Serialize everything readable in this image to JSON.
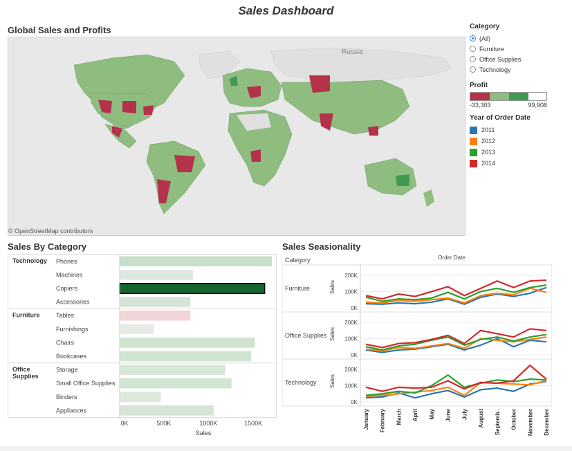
{
  "dashboard": {
    "title": "Sales Dashboard"
  },
  "map": {
    "title": "Global Sales and Profits",
    "label_russia": "Russia",
    "attribution": "© OpenStreetMap contributors"
  },
  "legend": {
    "category": {
      "header": "Category",
      "options": [
        "(All)",
        "Furniture",
        "Office Supplies",
        "Technology"
      ],
      "selected": "(All)"
    },
    "profit": {
      "header": "Profit",
      "min_label": "-33,303",
      "max_label": "99,908",
      "colors": [
        "#b5324b",
        "#8fbd80",
        "#3f9a53",
        "#ffffff"
      ]
    },
    "year": {
      "header": "Year of Order Date",
      "items": [
        {
          "label": "2011",
          "color": "#2a77b4"
        },
        {
          "label": "2012",
          "color": "#ff7f0e"
        },
        {
          "label": "2013",
          "color": "#2ca02c"
        },
        {
          "label": "2014",
          "color": "#d62728"
        }
      ]
    }
  },
  "sales_by_category": {
    "title": "Sales By Category",
    "chart_data": {
      "type": "bar",
      "xlabel": "Sales",
      "xlim": [
        0,
        1700000
      ],
      "xticks": [
        "0K",
        "500K",
        "1000K",
        "1500K"
      ],
      "groups": [
        {
          "name": "Technology",
          "items": [
            {
              "label": "Phones",
              "value": 1700000,
              "color": "#c7dfc9"
            },
            {
              "label": "Machines",
              "value": 820000,
              "color": "#dfe8de"
            },
            {
              "label": "Copiers",
              "value": 1620000,
              "color": "#14652f",
              "highlight": true
            },
            {
              "label": "Accessories",
              "value": 790000,
              "color": "#d5e4d6"
            }
          ]
        },
        {
          "name": "Furniture",
          "items": [
            {
              "label": "Tables",
              "value": 790000,
              "color": "#f1d5d7"
            },
            {
              "label": "Furnishings",
              "value": 380000,
              "color": "#e6ece5"
            },
            {
              "label": "Chairs",
              "value": 1510000,
              "color": "#cfe3d1"
            },
            {
              "label": "Bookcases",
              "value": 1470000,
              "color": "#cfe3d1"
            }
          ]
        },
        {
          "name": "Office Supplies",
          "items": [
            {
              "label": "Storage",
              "value": 1180000,
              "color": "#d6e6d7"
            },
            {
              "label": "Small Office Supplies",
              "value": 1250000,
              "color": "#d2e4d3"
            },
            {
              "label": "Binders",
              "value": 460000,
              "color": "#dde9dd"
            },
            {
              "label": "Appliances",
              "value": 1050000,
              "color": "#d4e5d5"
            }
          ]
        }
      ]
    }
  },
  "seasonality": {
    "title": "Sales Seasionality",
    "chart_data": {
      "type": "line",
      "col_header": "Category",
      "top_label": "Order Date",
      "ylabel": "Sales",
      "ylim": [
        0,
        200000
      ],
      "yticks": [
        "0K",
        "100K",
        "200K"
      ],
      "months": [
        "January",
        "February",
        "March",
        "April",
        "May",
        "June",
        "July",
        "August",
        "Septemb..",
        "October",
        "November",
        "December"
      ],
      "panels": [
        {
          "category": "Furniture",
          "series": [
            {
              "name": "2011",
              "values": [
                25000,
                22000,
                30000,
                25000,
                35000,
                55000,
                22000,
                65000,
                85000,
                70000,
                90000,
                125000
              ]
            },
            {
              "name": "2012",
              "values": [
                35000,
                30000,
                45000,
                40000,
                50000,
                60000,
                30000,
                75000,
                90000,
                80000,
                120000,
                95000
              ]
            },
            {
              "name": "2013",
              "values": [
                65000,
                40000,
                55000,
                50000,
                60000,
                95000,
                55000,
                100000,
                120000,
                95000,
                125000,
                140000
              ]
            },
            {
              "name": "2014",
              "values": [
                75000,
                55000,
                85000,
                70000,
                100000,
                130000,
                75000,
                120000,
                165000,
                125000,
                165000,
                170000
              ]
            }
          ]
        },
        {
          "category": "Office Supplies",
          "series": [
            {
              "name": "2011",
              "values": [
                30000,
                15000,
                30000,
                35000,
                50000,
                65000,
                30000,
                60000,
                100000,
                50000,
                90000,
                80000
              ]
            },
            {
              "name": "2012",
              "values": [
                35000,
                25000,
                45000,
                40000,
                55000,
                70000,
                40000,
                100000,
                90000,
                80000,
                95000,
                110000
              ]
            },
            {
              "name": "2013",
              "values": [
                50000,
                30000,
                55000,
                65000,
                90000,
                110000,
                60000,
                95000,
                110000,
                85000,
                110000,
                125000
              ]
            },
            {
              "name": "2014",
              "values": [
                65000,
                45000,
                70000,
                75000,
                95000,
                120000,
                70000,
                150000,
                130000,
                110000,
                160000,
                150000
              ]
            }
          ]
        },
        {
          "category": "Technology",
          "series": [
            {
              "name": "2011",
              "values": [
                25000,
                30000,
                55000,
                25000,
                50000,
                70000,
                30000,
                75000,
                85000,
                65000,
                110000,
                125000
              ]
            },
            {
              "name": "2012",
              "values": [
                35000,
                40000,
                50000,
                60000,
                70000,
                90000,
                40000,
                120000,
                115000,
                110000,
                105000,
                130000
              ]
            },
            {
              "name": "2013",
              "values": [
                40000,
                50000,
                65000,
                55000,
                100000,
                165000,
                90000,
                115000,
                135000,
                125000,
                140000,
                135000
              ]
            },
            {
              "name": "2014",
              "values": [
                90000,
                65000,
                90000,
                85000,
                90000,
                130000,
                80000,
                120000,
                115000,
                130000,
                225000,
                140000
              ]
            }
          ]
        }
      ]
    }
  }
}
